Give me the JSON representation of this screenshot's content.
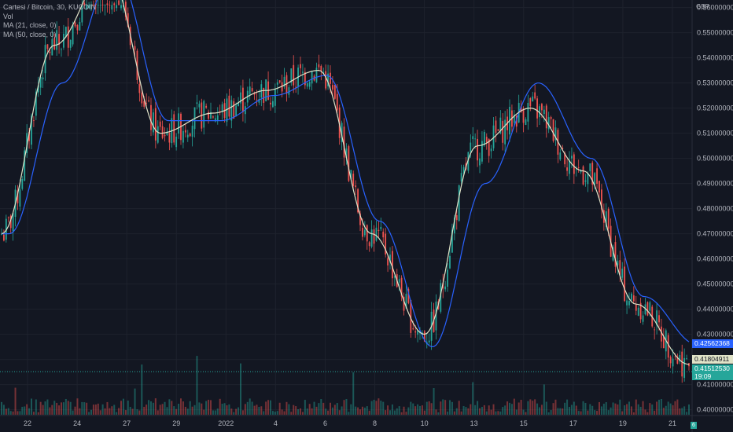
{
  "legend": {
    "title": "Cartesi / Bitcoin, 30, KUCOIN",
    "vol": "Vol",
    "ma21": "MA (21, close, 0)",
    "ma50": "MA (50, close, 0)"
  },
  "currency": "GBP",
  "price_tags": {
    "ma50_value": "0.42562368",
    "ma21_value": "0.41804911",
    "last_price": "0.41512530",
    "countdown": "19:09"
  },
  "volume_badge": "6",
  "colors": {
    "background": "#131722",
    "up": "#26a69a",
    "down": "#ef5350",
    "ma21": "#e0e3c8",
    "ma50": "#2962ff",
    "tag_ma50_bg": "#2962ff",
    "tag_ma21_bg": "#e0e3c8",
    "tag_last_bg": "#26a69a"
  },
  "chart_data": {
    "type": "line",
    "title": "Cartesi / Bitcoin, 30, KUCOIN",
    "ylim": [
      0.398,
      0.563
    ],
    "y_ticks": [
      "0.56000000",
      "0.55000000",
      "0.54000000",
      "0.53000000",
      "0.52000000",
      "0.51000000",
      "0.50000000",
      "0.49000000",
      "0.48000000",
      "0.47000000",
      "0.46000000",
      "0.45000000",
      "0.44000000",
      "0.43000000",
      "0.42000000",
      "0.41000000",
      "0.40000000"
    ],
    "x_ticks": [
      "22",
      "24",
      "27",
      "29",
      "2022",
      "4",
      "6",
      "8",
      "10",
      "13",
      "15",
      "17",
      "19",
      "21"
    ],
    "grid": true,
    "series": [
      {
        "name": "MA (21, close, 0)",
        "x": [
          "22",
          "24",
          "27",
          "29",
          "2022",
          "4",
          "6",
          "8",
          "10",
          "13",
          "15",
          "17",
          "19",
          "21"
        ],
        "values": [
          0.47,
          0.545,
          0.575,
          0.51,
          0.518,
          0.527,
          0.535,
          0.47,
          0.43,
          0.505,
          0.52,
          0.495,
          0.442,
          0.418
        ]
      },
      {
        "name": "MA (50, close, 0)",
        "x": [
          "22",
          "24",
          "27",
          "29",
          "2022",
          "4",
          "6",
          "8",
          "10",
          "13",
          "15",
          "17",
          "19",
          "21"
        ],
        "values": [
          0.47,
          0.53,
          0.575,
          0.515,
          0.515,
          0.525,
          0.533,
          0.475,
          0.425,
          0.49,
          0.53,
          0.5,
          0.445,
          0.426
        ]
      }
    ],
    "last_price": 0.4151253
  }
}
